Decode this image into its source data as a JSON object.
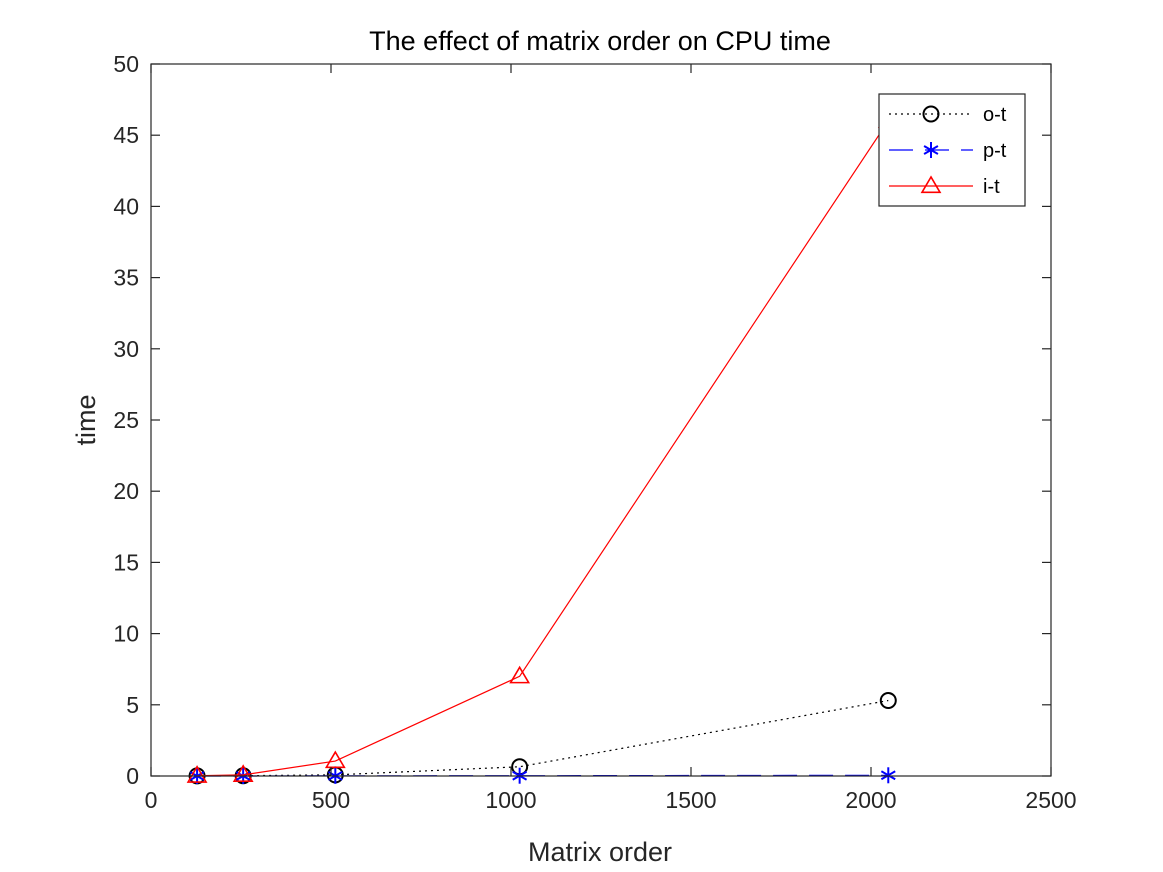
{
  "chart_data": {
    "type": "line",
    "title": "The effect of matrix order on CPU time",
    "xlabel": "Matrix order",
    "ylabel": "time",
    "xlim": [
      0,
      2500
    ],
    "ylim": [
      0,
      50
    ],
    "xticks": [
      0,
      500,
      1000,
      1500,
      2000,
      2500
    ],
    "yticks": [
      0,
      5,
      10,
      15,
      20,
      25,
      30,
      35,
      40,
      45,
      50
    ],
    "legend_position": "top-right",
    "x": [
      128,
      256,
      512,
      1024,
      2048
    ],
    "series": [
      {
        "name": "o-t",
        "values": [
          0.01,
          0.02,
          0.08,
          0.65,
          5.3
        ],
        "color": "#000000",
        "line_style": "dotted",
        "marker": "circle"
      },
      {
        "name": "p-t",
        "values": [
          0.0,
          0.0,
          0.01,
          0.02,
          0.05
        ],
        "color": "#0000ff",
        "line_style": "dashed",
        "marker": "asterisk"
      },
      {
        "name": "i-t",
        "values": [
          0.02,
          0.08,
          1.05,
          7.0,
          46.0
        ],
        "color": "#ff0000",
        "line_style": "solid",
        "marker": "triangle"
      }
    ]
  }
}
